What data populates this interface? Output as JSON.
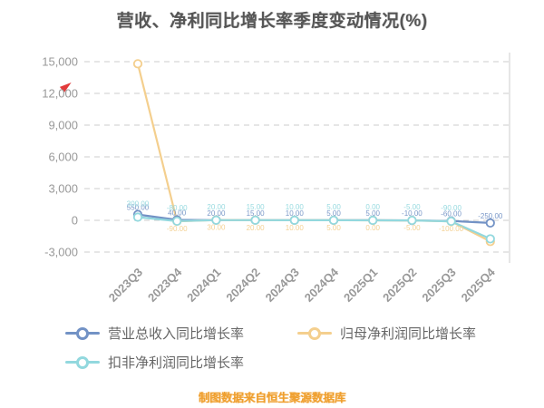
{
  "title": "营收、净利同比增长率季度变动情况(%)",
  "footer_note": "制图数据来自恒生聚源数据库",
  "icons": {
    "trend_arrow": "red-arrow-icon",
    "legend_marker": "line-dot-icon"
  },
  "colors": {
    "title_text": "#565656",
    "axis_text": "#999999",
    "gridline": "#cccccc",
    "footer_text": "#ef9f2e",
    "arrow_red": "#e23a3a"
  },
  "chart_data": {
    "type": "line",
    "title": "营收、净利同比增长率季度变动情况(%)",
    "categories": [
      "2023Q3",
      "2023Q4",
      "2024Q1",
      "2024Q2",
      "2024Q3",
      "2024Q4",
      "2025Q1",
      "2025Q2",
      "2025Q3",
      "2025Q4"
    ],
    "series": [
      {
        "name": "营业总收入同比增长率",
        "color": "#7292c5",
        "values": [
          550,
          40,
          20,
          15,
          10,
          5,
          5,
          -10,
          -60,
          -250
        ]
      },
      {
        "name": "归母净利润同比增长率",
        "color": "#f4cf8e",
        "values": [
          14800,
          -90,
          30,
          20,
          10,
          5,
          0,
          -5,
          -100,
          -2000
        ]
      },
      {
        "name": "扣非净利润同比增长率",
        "color": "#92d8de",
        "values": [
          300,
          -80,
          20,
          15,
          10,
          5,
          0,
          -5,
          -90,
          -1750
        ]
      }
    ],
    "xlabel": "",
    "ylabel": "",
    "ylim": [
      -3000,
      15000
    ],
    "yticks": [
      -3000,
      0,
      3000,
      6000,
      9000,
      12000,
      15000
    ],
    "grid": "dashed-horizontal",
    "legend_position": "bottom",
    "marker": "open-circle"
  }
}
